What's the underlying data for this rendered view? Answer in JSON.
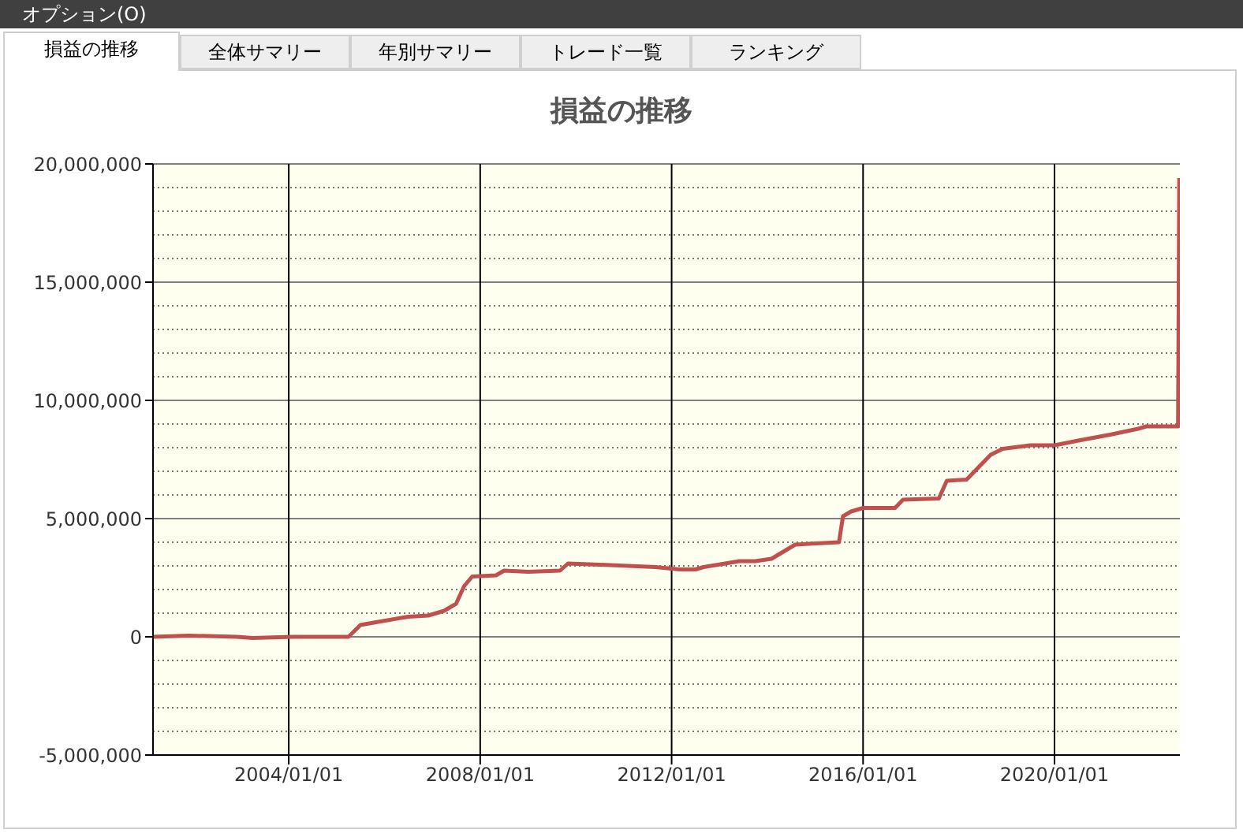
{
  "chart_data": {
    "type": "line",
    "title": "損益の推移",
    "annotations": [
      "オプション(O)",
      "損益の推移",
      "全体サマリー",
      "年別サマリー",
      "トレード一覧",
      "ランキング"
    ],
    "x": [
      "2001-03",
      "2001-12",
      "2002-12",
      "2003-04",
      "2004-02",
      "2005-04",
      "2005-07",
      "2005-12",
      "2006-07",
      "2006-12",
      "2007-04",
      "2007-07",
      "2007-09",
      "2007-11",
      "2008-05",
      "2008-07",
      "2009-01",
      "2009-09",
      "2009-11",
      "2010-07",
      "2011-09",
      "2012-03",
      "2012-07",
      "2012-09",
      "2013-06",
      "2013-10",
      "2014-02",
      "2014-08",
      "2015-07",
      "2015-08",
      "2015-10",
      "2016-01",
      "2016-09",
      "2016-11",
      "2017-08",
      "2017-10",
      "2018-03",
      "2018-09",
      "2018-12",
      "2019-07",
      "2020-01",
      "2020-07",
      "2021-03",
      "2021-10",
      "2021-12",
      "2022-08-01",
      "2022-08-10"
    ],
    "series": [
      {
        "color": "#c0504d",
        "values": [
          0,
          50000,
          0,
          -50000,
          0,
          0,
          500000,
          650000,
          850000,
          900000,
          1100000,
          1400000,
          2150000,
          2550000,
          2600000,
          2800000,
          2750000,
          2800000,
          3100000,
          3050000,
          2950000,
          2850000,
          2850000,
          2950000,
          3200000,
          3200000,
          3300000,
          3900000,
          4000000,
          5100000,
          5300000,
          5450000,
          5450000,
          5800000,
          5850000,
          6600000,
          6650000,
          7700000,
          7950000,
          8100000,
          8100000,
          8300000,
          8550000,
          8800000,
          8900000,
          8900000,
          19400000
        ]
      }
    ],
    "xlim": [
      "2001-03-01",
      "2022-08-15"
    ],
    "xticks": [
      {
        "value": "2004-01-01",
        "label": "2004/01/01"
      },
      {
        "value": "2008-01-01",
        "label": "2008/01/01"
      },
      {
        "value": "2012-01-01",
        "label": "2012/01/01"
      },
      {
        "value": "2016-01-01",
        "label": "2016/01/01"
      },
      {
        "value": "2020-01-01",
        "label": "2020/01/01"
      }
    ],
    "ylim": [
      -5000000,
      20000000
    ],
    "yticks": [
      {
        "value": -5000000,
        "label": "-5,000,000"
      },
      {
        "value": 0,
        "label": "0"
      },
      {
        "value": 5000000,
        "label": "5,000,000"
      },
      {
        "value": 10000000,
        "label": "10,000,000"
      },
      {
        "value": 15000000,
        "label": "15,000,000"
      },
      {
        "value": 20000000,
        "label": "20,000,000"
      }
    ],
    "grid": true,
    "legend": false,
    "marker": "none",
    "line_style": "solid"
  }
}
